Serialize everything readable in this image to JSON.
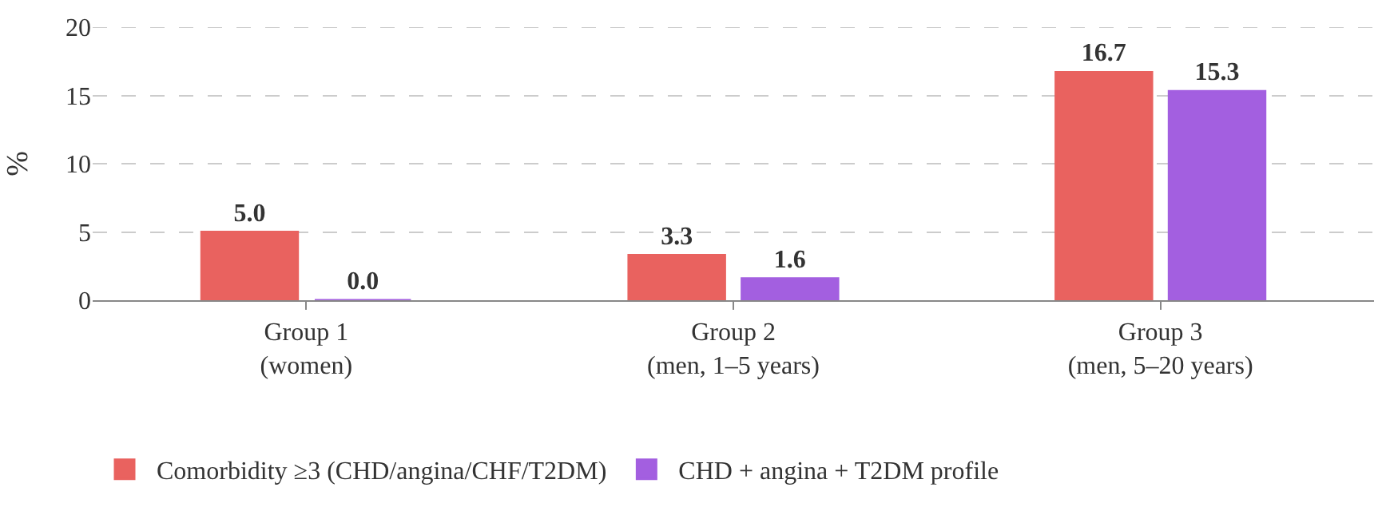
{
  "chart_data": {
    "type": "bar",
    "ylabel": "%",
    "categories": [
      "Group 1\n(women)",
      "Group 2\n(men, 1–5 years)",
      "Group 3\n(men, 5–20 years)"
    ],
    "series": [
      {
        "name": "Comorbidity ≥3 (CHD/angina/CHF/T2DM)",
        "color": "#e9625f",
        "values": [
          5.0,
          3.3,
          16.7
        ],
        "value_labels": [
          "5.0",
          "3.3",
          "16.7"
        ]
      },
      {
        "name": "CHD + angina + T2DM profile",
        "color": "#a35fe0",
        "values": [
          0.0,
          1.6,
          15.3
        ],
        "value_labels": [
          "0.0",
          "1.6",
          "15.3"
        ]
      }
    ],
    "ylim": [
      0,
      20
    ],
    "yticks": [
      0,
      5,
      10,
      15,
      20
    ],
    "grid": "y",
    "legend": "bottom"
  }
}
